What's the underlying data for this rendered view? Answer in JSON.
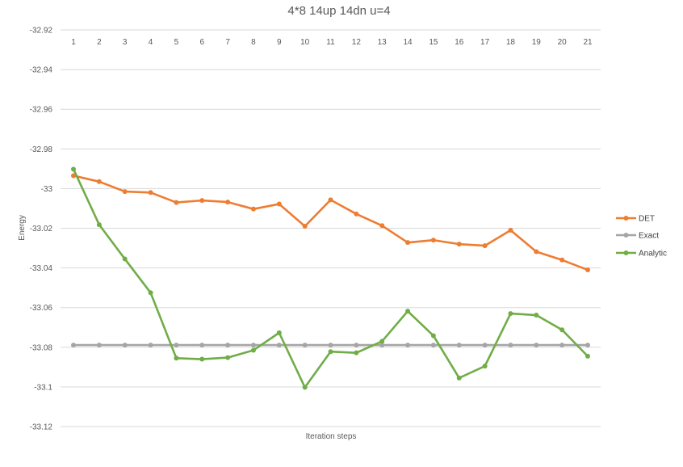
{
  "chart_data": {
    "type": "line",
    "title": "4*8 14up 14dn u=4",
    "xlabel": "Iteration steps",
    "ylabel": "Energy",
    "categories": [
      "1",
      "2",
      "3",
      "4",
      "5",
      "6",
      "7",
      "8",
      "9",
      "10",
      "11",
      "12",
      "13",
      "14",
      "15",
      "16",
      "17",
      "18",
      "19",
      "20",
      "21"
    ],
    "y_ticks": [
      "-32.92",
      "-32.94",
      "-32.96",
      "-32.98",
      "-33",
      "-33.02",
      "-33.04",
      "-33.06",
      "-33.08",
      "-33.1",
      "-33.12"
    ],
    "ylim": [
      -33.12,
      -32.92
    ],
    "grid": true,
    "legend_position": "right",
    "series": [
      {
        "name": "DET",
        "color": "#ED7D31",
        "values": [
          -32.9935,
          -32.9965,
          -33.0015,
          -33.002,
          -33.007,
          -33.006,
          -33.0068,
          -33.0103,
          -33.0078,
          -33.019,
          -33.0057,
          -33.0128,
          -33.0187,
          -33.0272,
          -33.026,
          -33.028,
          -33.0288,
          -33.021,
          -33.0318,
          -33.036,
          -33.041
        ]
      },
      {
        "name": "Exact",
        "color": "#A5A5A5",
        "values": [
          -33.0789,
          -33.0789,
          -33.0789,
          -33.0789,
          -33.0789,
          -33.0789,
          -33.0789,
          -33.0789,
          -33.0789,
          -33.0789,
          -33.0789,
          -33.0789,
          -33.0789,
          -33.0789,
          -33.0789,
          -33.0789,
          -33.0789,
          -33.0789,
          -33.0789,
          -33.0789,
          -33.0789
        ]
      },
      {
        "name": "Analytic",
        "color": "#70AD47",
        "values": [
          -32.9902,
          -33.0182,
          -33.0355,
          -33.0525,
          -33.0855,
          -33.086,
          -33.0852,
          -33.0815,
          -33.0727,
          -33.1002,
          -33.0822,
          -33.0828,
          -33.077,
          -33.0618,
          -33.0742,
          -33.0955,
          -33.0895,
          -33.063,
          -33.0638,
          -33.0712,
          -33.0845
        ]
      }
    ]
  }
}
